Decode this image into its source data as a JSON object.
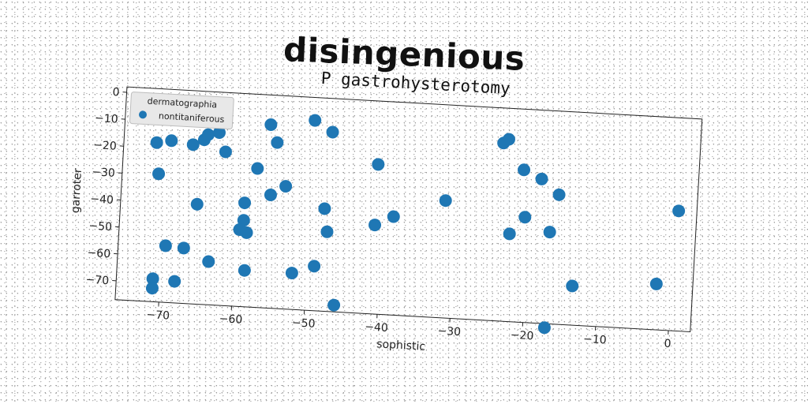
{
  "page_title": "disingenious",
  "chart_data": {
    "type": "scatter",
    "title": "P gastrohysterotomy",
    "xlabel": "sophistic",
    "ylabel": "garroter",
    "xlim": [
      -76,
      3
    ],
    "ylim": [
      -77,
      2
    ],
    "xticks": [
      -70,
      -60,
      -50,
      -40,
      -30,
      -20,
      -10,
      0
    ],
    "yticks": [
      0,
      -10,
      -20,
      -30,
      -40,
      -50,
      -60,
      -70
    ],
    "grid": false,
    "legend": {
      "title": "dermatographia",
      "placement": "top-left"
    },
    "series": [
      {
        "name": "nontitaniferous",
        "color": "#1f77b4",
        "points": [
          [
            -71.5,
            -18
          ],
          [
            -69.5,
            -17
          ],
          [
            -66.5,
            -18
          ],
          [
            -65,
            -16
          ],
          [
            -64.5,
            -14
          ],
          [
            -63,
            -13
          ],
          [
            -62,
            -20
          ],
          [
            -56,
            -9
          ],
          [
            -55,
            -15.5
          ],
          [
            -50,
            -6.5
          ],
          [
            -47.5,
            -10.5
          ],
          [
            -24,
            -11
          ],
          [
            -23.3,
            -9.5
          ],
          [
            -21,
            -20.5
          ],
          [
            -18.5,
            -23.5
          ],
          [
            -16,
            -29
          ],
          [
            -41,
            -21.5
          ],
          [
            -57.5,
            -25.5
          ],
          [
            -53.5,
            -31.5
          ],
          [
            -55.5,
            -35
          ],
          [
            -71,
            -29.5
          ],
          [
            -65.5,
            -40
          ],
          [
            -59,
            -38.5
          ],
          [
            -48,
            -39
          ],
          [
            -38.5,
            -40.5
          ],
          [
            -31.5,
            -33.5
          ],
          [
            -41,
            -44
          ],
          [
            -22.5,
            -44.5
          ],
          [
            -20.5,
            -38
          ],
          [
            -17,
            -43
          ],
          [
            0.5,
            -32.5
          ],
          [
            -59,
            -45
          ],
          [
            -59.5,
            -48.5
          ],
          [
            -58.5,
            -49.5
          ],
          [
            -47.5,
            -47.5
          ],
          [
            -69.5,
            -56
          ],
          [
            -67,
            -56.5
          ],
          [
            -63.5,
            -61
          ],
          [
            -58.5,
            -63.5
          ],
          [
            -52,
            -63.5
          ],
          [
            -49,
            -60.5
          ],
          [
            -13.5,
            -62.5
          ],
          [
            -2,
            -60
          ],
          [
            -71,
            -68.5
          ],
          [
            -68,
            -69
          ],
          [
            -71,
            -72
          ],
          [
            -46,
            -74.5
          ],
          [
            -17,
            -78.5
          ]
        ]
      }
    ]
  }
}
